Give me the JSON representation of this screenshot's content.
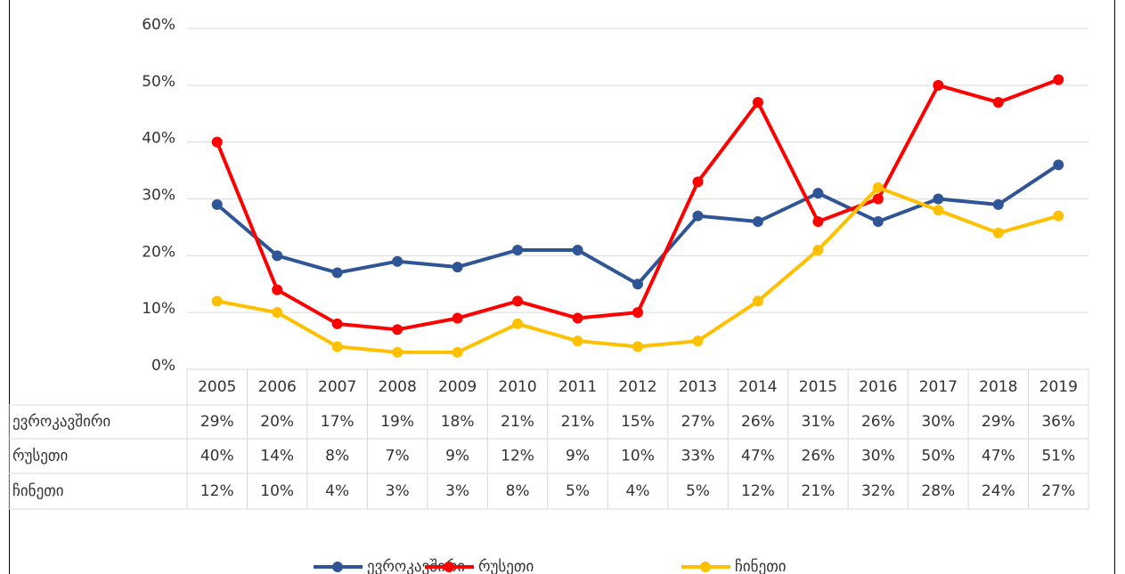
{
  "chart_data": {
    "type": "line",
    "categories": [
      "2005",
      "2006",
      "2007",
      "2008",
      "2009",
      "2010",
      "2011",
      "2012",
      "2013",
      "2014",
      "2015",
      "2016",
      "2017",
      "2018",
      "2019"
    ],
    "series": [
      {
        "name": "ევროკავშირი",
        "color": "#2f5597",
        "values": [
          29,
          20,
          17,
          19,
          18,
          21,
          21,
          15,
          27,
          26,
          31,
          26,
          30,
          29,
          36
        ],
        "value_labels": [
          "29%",
          "20%",
          "17%",
          "19%",
          "18%",
          "21%",
          "21%",
          "15%",
          "27%",
          "26%",
          "31%",
          "26%",
          "30%",
          "29%",
          "36%"
        ]
      },
      {
        "name": "რუსეთი",
        "color": "#ff0000",
        "values": [
          40,
          14,
          8,
          7,
          9,
          12,
          9,
          10,
          33,
          47,
          26,
          30,
          50,
          47,
          51
        ],
        "value_labels": [
          "40%",
          "14%",
          "8%",
          "7%",
          "9%",
          "12%",
          "9%",
          "10%",
          "33%",
          "47%",
          "26%",
          "30%",
          "50%",
          "47%",
          "51%"
        ]
      },
      {
        "name": "ჩინეთი",
        "color": "#ffc000",
        "values": [
          12,
          10,
          4,
          3,
          3,
          8,
          5,
          4,
          5,
          12,
          21,
          32,
          28,
          24,
          27
        ],
        "value_labels": [
          "12%",
          "10%",
          "4%",
          "3%",
          "3%",
          "8%",
          "5%",
          "4%",
          "5%",
          "12%",
          "21%",
          "32%",
          "28%",
          "24%",
          "27%"
        ]
      }
    ],
    "ylim": [
      0,
      60
    ],
    "yticks": [
      {
        "value": 0,
        "label": "0%"
      },
      {
        "value": 10,
        "label": "10%"
      },
      {
        "value": 20,
        "label": "20%"
      },
      {
        "value": 30,
        "label": "30%"
      },
      {
        "value": 40,
        "label": "40%"
      },
      {
        "value": 50,
        "label": "50%"
      },
      {
        "value": 60,
        "label": "60%"
      }
    ],
    "grid": true,
    "legend": "bottom"
  }
}
